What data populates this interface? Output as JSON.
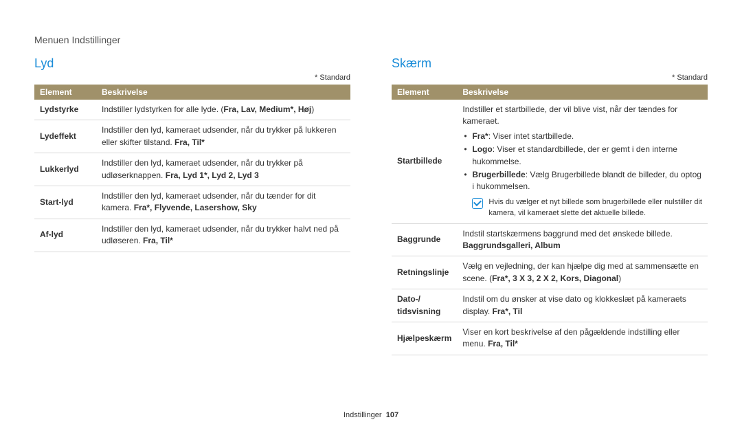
{
  "breadcrumb": "Menuen Indstillinger",
  "footer_label": "Indstillinger",
  "footer_page": "107",
  "colors": {
    "accent_blue": "#1a8cd8",
    "header_bg": "#a0916a",
    "header_text": "#ffffff",
    "border": "#d8d8d8",
    "text": "#333333",
    "background": "#ffffff"
  },
  "typography": {
    "body_fontsize_pt": 9,
    "heading_fontsize_pt": 14,
    "font_family": "Arial"
  },
  "left": {
    "title": "Lyd",
    "std_note": "* Standard",
    "headers": {
      "elem": "Element",
      "desc": "Beskrivelse"
    },
    "col_widths_pct": [
      20,
      80
    ],
    "rows": [
      {
        "elem": "Lydstyrke",
        "desc_pre": "Indstiller lydstyrken for alle lyde. (",
        "desc_bold": "Fra, Lav, Medium*, Høj",
        "desc_post": ")"
      },
      {
        "elem": "Lydeffekt",
        "desc_pre": "Indstiller den lyd, kameraet udsender, når du trykker på lukkeren eller skifter tilstand. ",
        "desc_bold": "Fra, Til*",
        "desc_post": ""
      },
      {
        "elem": "Lukkerlyd",
        "desc_pre": "Indstiller den lyd, kameraet udsender, når du trykker på udløserknappen. ",
        "desc_bold": "Fra, Lyd 1*, Lyd 2, Lyd 3",
        "desc_post": ""
      },
      {
        "elem": "Start-lyd",
        "desc_pre": "Indstiller den lyd, kameraet udsender, når du tænder for dit kamera. ",
        "desc_bold": "Fra*, Flyvende, Lasershow, Sky",
        "desc_post": ""
      },
      {
        "elem": "Af-lyd",
        "desc_pre": "Indstiller den lyd, kameraet udsender, når du trykker halvt ned på udløseren. ",
        "desc_bold": "Fra, Til*",
        "desc_post": ""
      }
    ]
  },
  "right": {
    "title": "Skærm",
    "std_note": "* Standard",
    "headers": {
      "elem": "Element",
      "desc": "Beskrivelse"
    },
    "col_widths_pct": [
      20,
      80
    ],
    "startbillede": {
      "elem": "Startbillede",
      "intro": "Indstiller et startbillede, der vil blive vist, når der tændes for kameraet.",
      "b1_bold": "Fra*",
      "b1_rest": ": Viser intet startbillede.",
      "b2_bold": "Logo",
      "b2_rest": ": Viser et standardbillede, der er gemt i den interne hukommelse.",
      "b3_bold": "Brugerbillede",
      "b3_rest": ": Vælg Brugerbillede blandt de billeder, du optog i hukommelsen.",
      "note": "Hvis du vælger et nyt billede som brugerbillede eller nulstiller dit kamera, vil kameraet slette det aktuelle billede."
    },
    "rows": [
      {
        "elem": "Baggrunde",
        "desc_pre": "Indstil startskærmens baggrund med det ønskede billede. ",
        "desc_bold": "Baggrundsgalleri, Album",
        "desc_post": ""
      },
      {
        "elem": "Retningslinje",
        "desc_pre": "Vælg en vejledning, der kan hjælpe dig med at sammensætte en scene. (",
        "desc_bold": "Fra*, 3 X 3, 2 X 2, Kors, Diagonal",
        "desc_post": ")"
      },
      {
        "elem": "Dato-/ tidsvisning",
        "desc_pre": "Indstil om du ønsker at vise dato og klokkeslæt på kameraets display. ",
        "desc_bold": "Fra*, Til",
        "desc_post": ""
      },
      {
        "elem": "Hjælpeskærm",
        "desc_pre": "Viser en kort beskrivelse af den pågældende indstilling eller menu. ",
        "desc_bold": "Fra, Til*",
        "desc_post": ""
      }
    ]
  }
}
